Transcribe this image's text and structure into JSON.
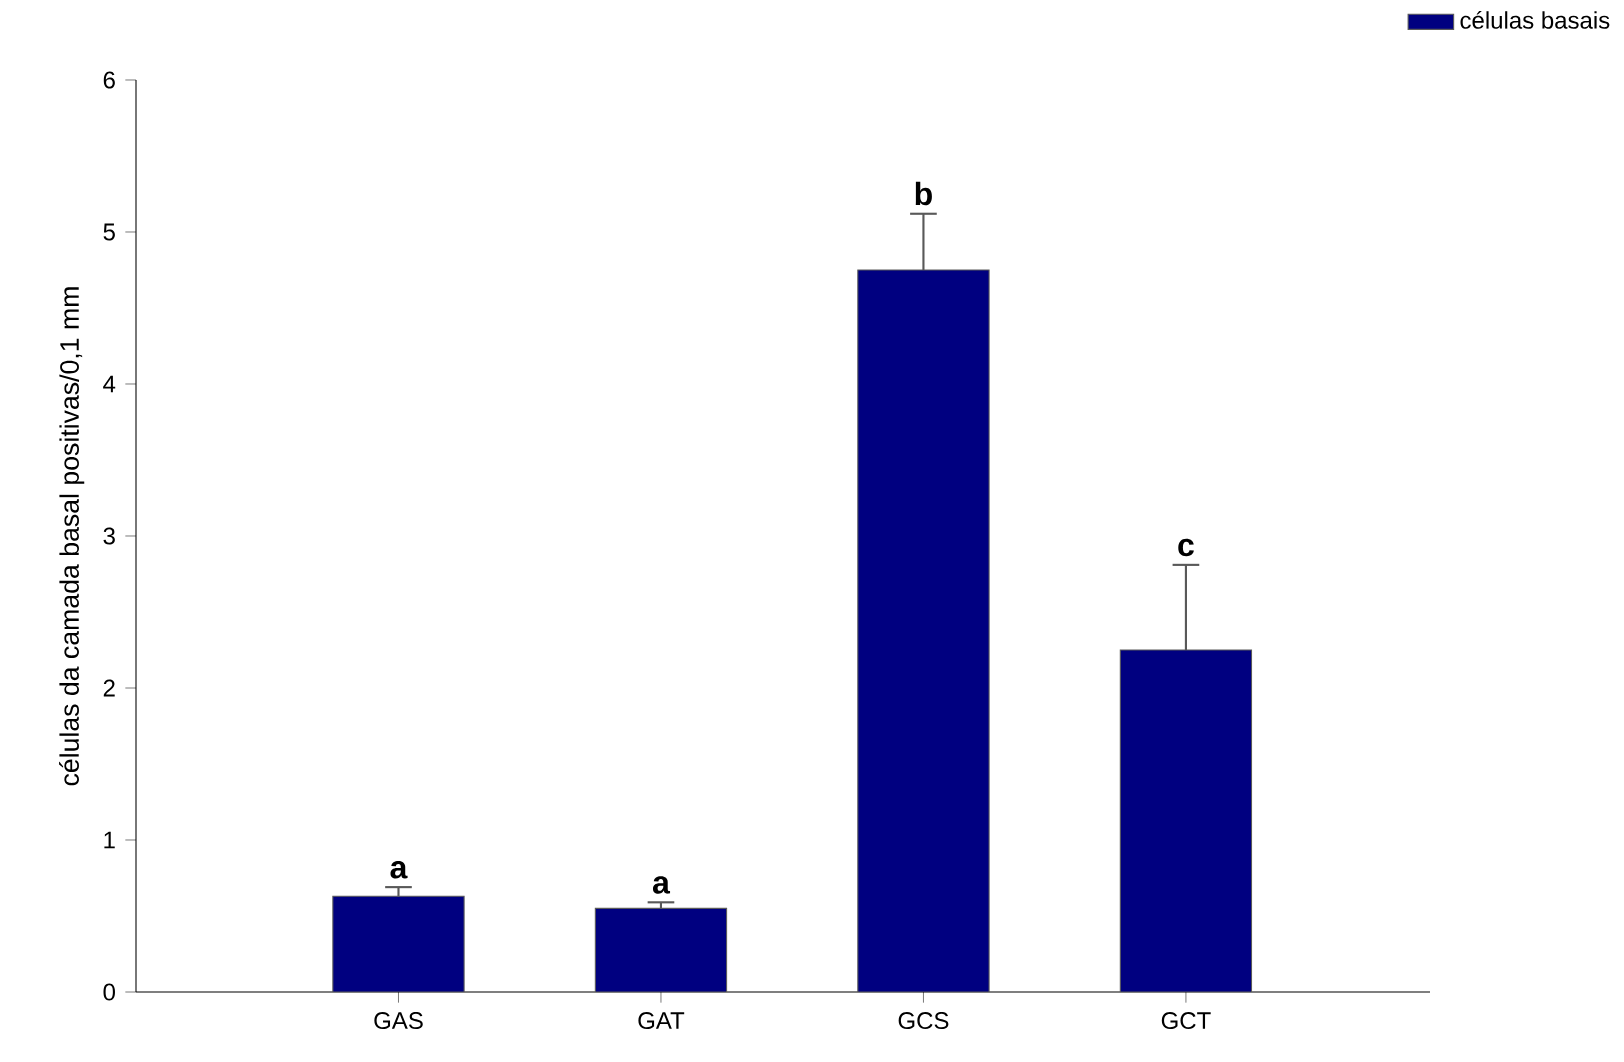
{
  "chart_data": {
    "type": "bar",
    "ylabel": "células da camada basal positivas/0,1 mm",
    "categories": [
      "GAS",
      "GAT",
      "GCS",
      "GCT"
    ],
    "series": [
      {
        "name": "células basais",
        "color": "#000080",
        "values": [
          0.63,
          0.55,
          4.75,
          2.25
        ],
        "errors": [
          [
            0.63,
            0.69
          ],
          [
            0.55,
            0.59
          ],
          [
            4.75,
            5.12
          ],
          [
            2.25,
            2.81
          ]
        ]
      }
    ],
    "ylim": [
      0,
      6
    ],
    "yticks": [
      0,
      1,
      2,
      3,
      4,
      5,
      6
    ],
    "legend": "top right",
    "grid": false,
    "annotations": [
      "a",
      "a",
      "b",
      "c"
    ]
  }
}
